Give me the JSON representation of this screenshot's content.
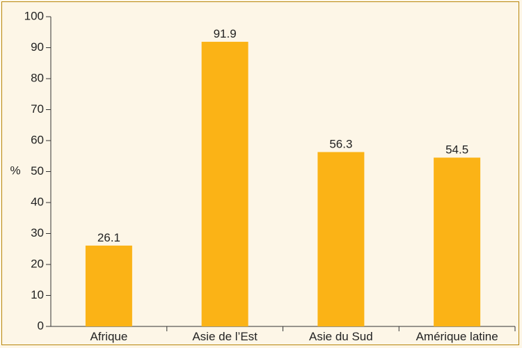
{
  "chart_data": {
    "type": "bar",
    "categories": [
      "Afrique",
      "Asie de l’Est",
      "Asie du Sud",
      "Amérique latine"
    ],
    "values": [
      26.1,
      91.9,
      56.3,
      54.5
    ],
    "value_labels": [
      "26.1",
      "91.9",
      "56.3",
      "54.5"
    ],
    "title": "",
    "xlabel": "",
    "ylabel": "%",
    "ylim": [
      0,
      100
    ],
    "yticks": [
      0,
      10,
      20,
      30,
      40,
      50,
      60,
      70,
      80,
      90,
      100
    ],
    "grid": false,
    "bar_color": "#fbb316"
  }
}
